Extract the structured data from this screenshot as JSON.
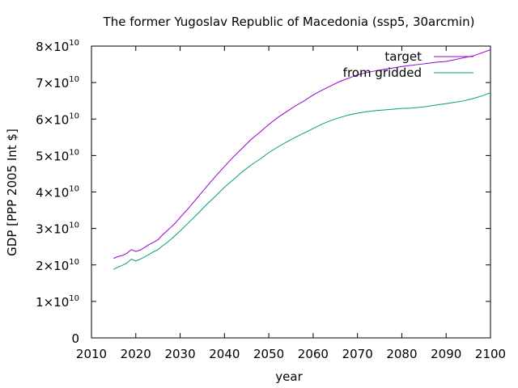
{
  "chart_data": {
    "type": "line",
    "title": "The former Yugoslav Republic of Macedonia (ssp5, 30arcmin)",
    "xlabel": "year",
    "ylabel": "GDP [PPP 2005 Int $]",
    "xlim": [
      2010,
      2100
    ],
    "ylim": [
      0,
      80000000000
    ],
    "x_ticks": [
      2010,
      2020,
      2030,
      2040,
      2050,
      2060,
      2070,
      2080,
      2090,
      2100
    ],
    "y_ticks": [
      {
        "value": 0,
        "mantissa": "0",
        "exponent": ""
      },
      {
        "value": 10000000000,
        "mantissa": "1×10",
        "exponent": "10"
      },
      {
        "value": 20000000000,
        "mantissa": "2×10",
        "exponent": "10"
      },
      {
        "value": 30000000000,
        "mantissa": "3×10",
        "exponent": "10"
      },
      {
        "value": 40000000000,
        "mantissa": "4×10",
        "exponent": "10"
      },
      {
        "value": 50000000000,
        "mantissa": "5×10",
        "exponent": "10"
      },
      {
        "value": 60000000000,
        "mantissa": "6×10",
        "exponent": "10"
      },
      {
        "value": 70000000000,
        "mantissa": "7×10",
        "exponent": "10"
      },
      {
        "value": 80000000000,
        "mantissa": "8×10",
        "exponent": "10"
      }
    ],
    "grid": false,
    "legend_position": "top-right",
    "x": [
      2015,
      2016,
      2017,
      2018,
      2019,
      2020,
      2021,
      2022,
      2023,
      2024,
      2025,
      2026,
      2027,
      2028,
      2029,
      2030,
      2032,
      2034,
      2036,
      2038,
      2040,
      2042,
      2044,
      2046,
      2048,
      2050,
      2052,
      2054,
      2056,
      2058,
      2060,
      2062,
      2064,
      2066,
      2068,
      2070,
      2072,
      2074,
      2076,
      2078,
      2080,
      2082,
      2084,
      2086,
      2088,
      2090,
      2092,
      2094,
      2096,
      2098,
      2100
    ],
    "series": [
      {
        "name": "target",
        "color": "#9400d3",
        "values": [
          21800000000.0,
          22300000000.0,
          22600000000.0,
          23200000000.0,
          24200000000.0,
          23700000000.0,
          24100000000.0,
          24800000000.0,
          25600000000.0,
          26200000000.0,
          26900000000.0,
          28200000000.0,
          29300000000.0,
          30400000000.0,
          31600000000.0,
          33000000000.0,
          35700000000.0,
          38600000000.0,
          41500000000.0,
          44300000000.0,
          47000000000.0,
          49600000000.0,
          52000000000.0,
          54400000000.0,
          56400000000.0,
          58500000000.0,
          60400000000.0,
          62000000000.0,
          63600000000.0,
          65000000000.0,
          66600000000.0,
          67900000000.0,
          69100000000.0,
          70300000000.0,
          71200000000.0,
          72100000000.0,
          72700000000.0,
          73200000000.0,
          73600000000.0,
          74000000000.0,
          74400000000.0,
          74700000000.0,
          75000000000.0,
          75300000000.0,
          75600000000.0,
          75800000000.0,
          76300000000.0,
          76800000000.0,
          77300000000.0,
          78100000000.0,
          79000000000.0
        ]
      },
      {
        "name": "from gridded",
        "color": "#009e73",
        "values": [
          18800000000.0,
          19400000000.0,
          19900000000.0,
          20500000000.0,
          21600000000.0,
          21100000000.0,
          21600000000.0,
          22200000000.0,
          22900000000.0,
          23600000000.0,
          24200000000.0,
          25200000000.0,
          26100000000.0,
          27100000000.0,
          28200000000.0,
          29300000000.0,
          31700000000.0,
          34100000000.0,
          36600000000.0,
          38900000000.0,
          41300000000.0,
          43400000000.0,
          45500000000.0,
          47400000000.0,
          49000000000.0,
          50800000000.0,
          52300000000.0,
          53700000000.0,
          55000000000.0,
          56200000000.0,
          57400000000.0,
          58600000000.0,
          59600000000.0,
          60400000000.0,
          61100000000.0,
          61600000000.0,
          62000000000.0,
          62300000000.0,
          62500000000.0,
          62700000000.0,
          62900000000.0,
          63000000000.0,
          63200000000.0,
          63500000000.0,
          63900000000.0,
          64200000000.0,
          64600000000.0,
          65000000000.0,
          65600000000.0,
          66300000000.0,
          67200000000.0
        ]
      }
    ]
  }
}
